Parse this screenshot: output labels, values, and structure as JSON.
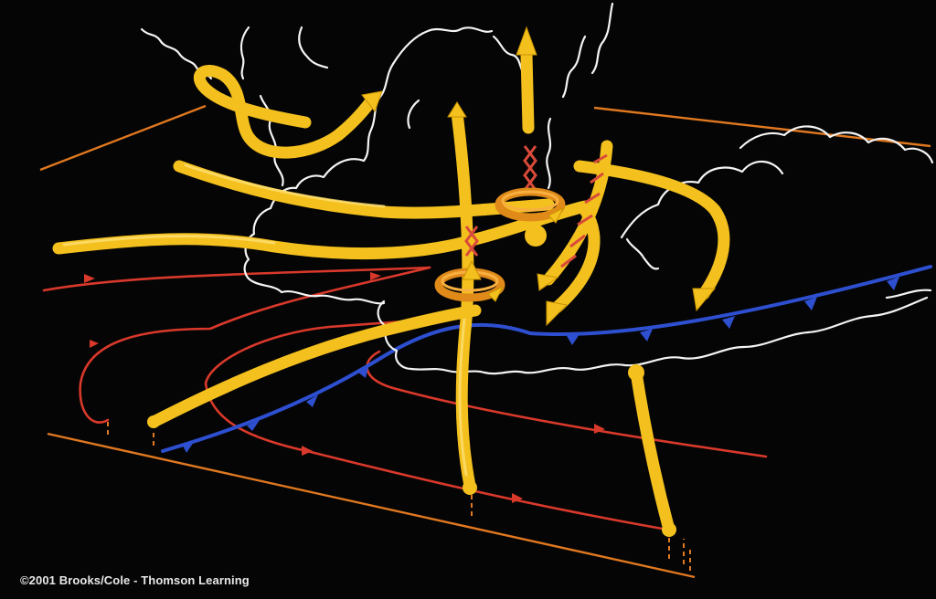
{
  "image": {
    "copyright": "©2001 Brooks/Cole - Thomson Learning"
  },
  "colors": {
    "background": "#050505",
    "cloud_outline": "#f4f4f4",
    "updraft_flow": "#f3c01e",
    "warm_inflow": "#d9392b",
    "ground_plane": "#e07820",
    "gust_front": "#2d4fd0",
    "rotation": "#e08a1a"
  },
  "icons": [
    "storm-cloud-outline",
    "updraft-arrow",
    "rotation-ring",
    "cold-front-symbol"
  ]
}
